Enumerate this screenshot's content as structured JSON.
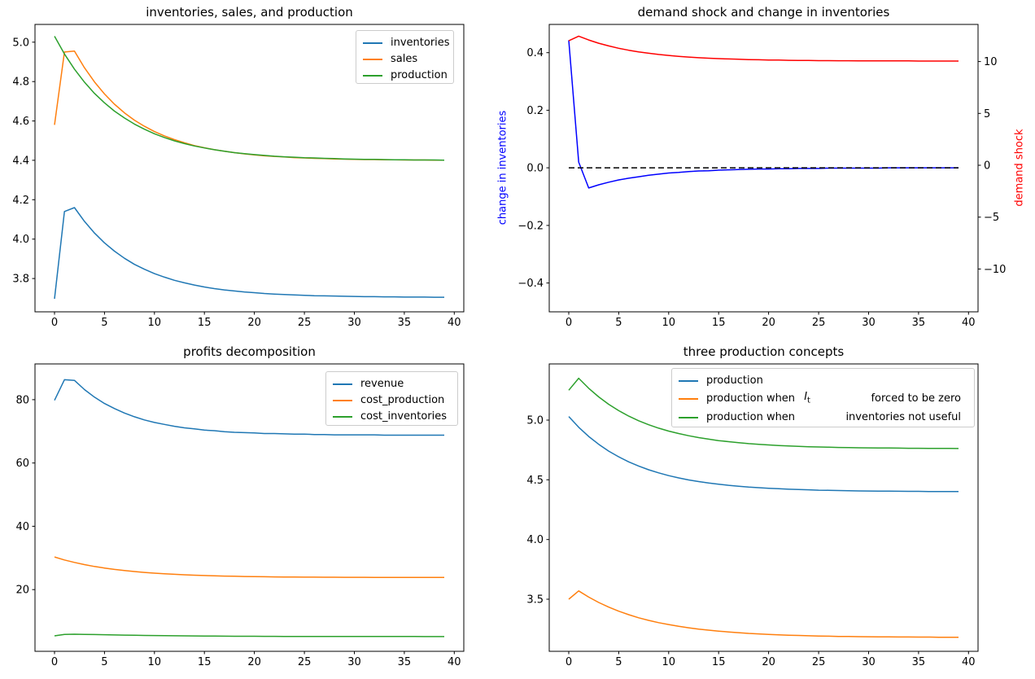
{
  "figure": {
    "background": "#ffffff",
    "axis_color": "#000000"
  },
  "chart_data": [
    {
      "type": "line",
      "title": "inventories, sales, and production",
      "xlabel": "",
      "ylabel": "",
      "grid": false,
      "legend_position": "upper right",
      "xlim": [
        -1.95,
        40.95
      ],
      "ylim": [
        3.631,
        5.09
      ],
      "xticks": {
        "values": [
          0,
          5,
          10,
          15,
          20,
          25,
          30,
          35,
          40
        ],
        "labels": [
          "0",
          "5",
          "10",
          "15",
          "20",
          "25",
          "30",
          "35",
          "40"
        ]
      },
      "yticks": {
        "values": [
          3.8,
          4.0,
          4.2,
          4.4,
          4.6,
          4.8,
          5.0
        ],
        "labels": [
          "3.8",
          "4.0",
          "4.2",
          "4.4",
          "4.6",
          "4.8",
          "5.0"
        ]
      },
      "x": [
        0,
        1,
        2,
        3,
        4,
        5,
        6,
        7,
        8,
        9,
        10,
        11,
        12,
        13,
        14,
        15,
        16,
        17,
        18,
        19,
        20,
        21,
        22,
        23,
        24,
        25,
        26,
        27,
        28,
        29,
        30,
        31,
        32,
        33,
        34,
        35,
        36,
        37,
        38,
        39
      ],
      "series": [
        {
          "name": "inventories",
          "label": "inventories",
          "color": "#1f77b4",
          "values": [
            3.697,
            4.14,
            4.16,
            4.09,
            4.031,
            3.981,
            3.939,
            3.903,
            3.872,
            3.847,
            3.825,
            3.807,
            3.791,
            3.778,
            3.767,
            3.757,
            3.749,
            3.742,
            3.737,
            3.732,
            3.728,
            3.724,
            3.721,
            3.719,
            3.717,
            3.715,
            3.713,
            3.712,
            3.711,
            3.71,
            3.709,
            3.708,
            3.708,
            3.707,
            3.707,
            3.706,
            3.706,
            3.706,
            3.705,
            3.705
          ]
        },
        {
          "name": "sales",
          "label": "sales",
          "color": "#ff7f0e",
          "values": [
            4.58,
            4.95,
            4.955,
            4.87,
            4.798,
            4.737,
            4.685,
            4.641,
            4.604,
            4.573,
            4.546,
            4.524,
            4.505,
            4.489,
            4.475,
            4.464,
            4.454,
            4.446,
            4.439,
            4.433,
            4.428,
            4.423,
            4.42,
            4.417,
            4.414,
            4.412,
            4.41,
            4.409,
            4.407,
            4.406,
            4.405,
            4.404,
            4.404,
            4.403,
            4.403,
            4.402,
            4.402,
            4.402,
            4.401,
            4.401
          ]
        },
        {
          "name": "production",
          "label": "production",
          "color": "#2ca02c",
          "values": [
            5.03,
            4.94,
            4.863,
            4.797,
            4.74,
            4.692,
            4.65,
            4.615,
            4.584,
            4.558,
            4.535,
            4.516,
            4.499,
            4.485,
            4.473,
            4.463,
            4.454,
            4.446,
            4.439,
            4.434,
            4.429,
            4.425,
            4.421,
            4.418,
            4.416,
            4.413,
            4.412,
            4.41,
            4.409,
            4.407,
            4.406,
            4.405,
            4.405,
            4.404,
            4.403,
            4.403,
            4.402,
            4.402,
            4.402,
            4.401
          ]
        }
      ]
    },
    {
      "type": "line",
      "title": "demand shock and change in inventories",
      "ylabel_left": "change in inventories",
      "ylabel_left_color": "#0000ff",
      "ylabel_right": "demand shock",
      "ylabel_right_color": "#ff0000",
      "grid": false,
      "xlim": [
        -1.95,
        40.95
      ],
      "ylim": [
        -0.5,
        0.498
      ],
      "ylim2": [
        -14.13,
        13.58
      ],
      "xticks": {
        "values": [
          0,
          5,
          10,
          15,
          20,
          25,
          30,
          35,
          40
        ],
        "labels": [
          "0",
          "5",
          "10",
          "15",
          "20",
          "25",
          "30",
          "35",
          "40"
        ]
      },
      "yticks": {
        "values": [
          -0.4,
          -0.2,
          0.0,
          0.2,
          0.4
        ],
        "labels": [
          "−0.4",
          "−0.2",
          "0.0",
          "0.2",
          "0.4"
        ]
      },
      "yticks2": {
        "values": [
          -10,
          -5,
          0,
          5,
          10
        ],
        "labels": [
          "−10",
          "−5",
          "0",
          "5",
          "10"
        ]
      },
      "x": [
        0,
        1,
        2,
        3,
        4,
        5,
        6,
        7,
        8,
        9,
        10,
        11,
        12,
        13,
        14,
        15,
        16,
        17,
        18,
        19,
        20,
        21,
        22,
        23,
        24,
        25,
        26,
        27,
        28,
        29,
        30,
        31,
        32,
        33,
        34,
        35,
        36,
        37,
        38,
        39
      ],
      "series": [
        {
          "name": "change-in-inventories",
          "label": "change in inventories",
          "color": "#0000ff",
          "values": [
            0.443,
            0.02,
            -0.07,
            -0.059,
            -0.05,
            -0.042,
            -0.036,
            -0.031,
            -0.026,
            -0.022,
            -0.018,
            -0.016,
            -0.013,
            -0.011,
            -0.01,
            -0.008,
            -0.007,
            -0.006,
            -0.005,
            -0.004,
            -0.004,
            -0.003,
            -0.003,
            -0.002,
            -0.002,
            -0.002,
            -0.001,
            -0.001,
            -0.001,
            -0.001,
            -0.001,
            -0.001,
            0.0,
            0.0,
            0.0,
            0.0,
            0.0,
            0.0,
            0.0,
            0.0
          ]
        },
        {
          "name": "demand-shock",
          "label": "demand shock",
          "color": "#ff0000",
          "axis": "right",
          "values": [
            12.0,
            12.45,
            12.08,
            11.77,
            11.51,
            11.28,
            11.09,
            10.93,
            10.8,
            10.68,
            10.59,
            10.5,
            10.43,
            10.37,
            10.32,
            10.28,
            10.25,
            10.22,
            10.19,
            10.17,
            10.15,
            10.14,
            10.12,
            10.11,
            10.1,
            10.09,
            10.09,
            10.08,
            10.08,
            10.07,
            10.07,
            10.06,
            10.06,
            10.06,
            10.06,
            10.05,
            10.05,
            10.05,
            10.05,
            10.05
          ]
        },
        {
          "name": "zero-line",
          "label": "zero line",
          "color": "#000000",
          "dash": true,
          "values": [
            0,
            0,
            0,
            0,
            0,
            0,
            0,
            0,
            0,
            0,
            0,
            0,
            0,
            0,
            0,
            0,
            0,
            0,
            0,
            0,
            0,
            0,
            0,
            0,
            0,
            0,
            0,
            0,
            0,
            0,
            0,
            0,
            0,
            0,
            0,
            0,
            0,
            0,
            0,
            0
          ]
        }
      ]
    },
    {
      "type": "line",
      "title": "profits decomposition",
      "grid": false,
      "legend_position": "upper right",
      "xlim": [
        -1.95,
        40.95
      ],
      "ylim": [
        0.5,
        91.3
      ],
      "xticks": {
        "values": [
          0,
          5,
          10,
          15,
          20,
          25,
          30,
          35,
          40
        ],
        "labels": [
          "0",
          "5",
          "10",
          "15",
          "20",
          "25",
          "30",
          "35",
          "40"
        ]
      },
      "yticks": {
        "values": [
          20,
          40,
          60,
          80
        ],
        "labels": [
          "20",
          "40",
          "60",
          "80"
        ]
      },
      "x": [
        0,
        1,
        2,
        3,
        4,
        5,
        6,
        7,
        8,
        9,
        10,
        11,
        12,
        13,
        14,
        15,
        16,
        17,
        18,
        19,
        20,
        21,
        22,
        23,
        24,
        25,
        26,
        27,
        28,
        29,
        30,
        31,
        32,
        33,
        34,
        35,
        36,
        37,
        38,
        39
      ],
      "series": [
        {
          "name": "revenue",
          "label": "revenue",
          "color": "#1f77b4",
          "values": [
            79.8,
            86.3,
            86.1,
            83.2,
            80.8,
            78.8,
            77.2,
            75.8,
            74.6,
            73.6,
            72.8,
            72.2,
            71.6,
            71.1,
            70.8,
            70.4,
            70.2,
            69.9,
            69.7,
            69.6,
            69.5,
            69.3,
            69.3,
            69.2,
            69.1,
            69.1,
            69.0,
            69.0,
            68.9,
            68.9,
            68.9,
            68.9,
            68.9,
            68.8,
            68.8,
            68.8,
            68.8,
            68.8,
            68.8,
            68.8
          ]
        },
        {
          "name": "cost-production",
          "label": "cost_production",
          "color": "#ff7f0e",
          "values": [
            30.3,
            29.37,
            28.58,
            27.9,
            27.31,
            26.81,
            26.38,
            26.01,
            25.7,
            25.43,
            25.2,
            25.0,
            24.83,
            24.68,
            24.55,
            24.45,
            24.35,
            24.28,
            24.21,
            24.15,
            24.1,
            24.06,
            24.02,
            23.99,
            23.97,
            23.94,
            23.93,
            23.91,
            23.9,
            23.88,
            23.87,
            23.87,
            23.86,
            23.86,
            23.85,
            23.85,
            23.85,
            23.84,
            23.84,
            23.84
          ]
        },
        {
          "name": "cost-inventories",
          "label": "cost_inventories",
          "color": "#2ca02c",
          "values": [
            5.4,
            5.85,
            5.9,
            5.85,
            5.8,
            5.74,
            5.68,
            5.62,
            5.57,
            5.52,
            5.48,
            5.44,
            5.41,
            5.38,
            5.35,
            5.33,
            5.31,
            5.29,
            5.27,
            5.26,
            5.25,
            5.24,
            5.23,
            5.22,
            5.21,
            5.21,
            5.2,
            5.2,
            5.19,
            5.19,
            5.18,
            5.18,
            5.18,
            5.17,
            5.17,
            5.17,
            5.17,
            5.16,
            5.16,
            5.16
          ]
        }
      ]
    },
    {
      "type": "line",
      "title": "three production concepts",
      "grid": false,
      "legend_position": "upper center",
      "xlim": [
        -1.95,
        40.95
      ],
      "ylim": [
        3.064,
        5.47
      ],
      "xticks": {
        "values": [
          0,
          5,
          10,
          15,
          20,
          25,
          30,
          35,
          40
        ],
        "labels": [
          "0",
          "5",
          "10",
          "15",
          "20",
          "25",
          "30",
          "35",
          "40"
        ]
      },
      "yticks": {
        "values": [
          3.5,
          4.0,
          4.5,
          5.0
        ],
        "labels": [
          "3.5",
          "4.0",
          "4.5",
          "5.0"
        ]
      },
      "x": [
        0,
        1,
        2,
        3,
        4,
        5,
        6,
        7,
        8,
        9,
        10,
        11,
        12,
        13,
        14,
        15,
        16,
        17,
        18,
        19,
        20,
        21,
        22,
        23,
        24,
        25,
        26,
        27,
        28,
        29,
        30,
        31,
        32,
        33,
        34,
        35,
        36,
        37,
        38,
        39
      ],
      "series": [
        {
          "name": "production",
          "label": "production",
          "color": "#1f77b4",
          "values": [
            5.03,
            4.94,
            4.863,
            4.797,
            4.74,
            4.692,
            4.65,
            4.615,
            4.584,
            4.558,
            4.535,
            4.516,
            4.499,
            4.485,
            4.473,
            4.463,
            4.454,
            4.446,
            4.439,
            4.434,
            4.429,
            4.425,
            4.421,
            4.418,
            4.416,
            4.413,
            4.412,
            4.41,
            4.409,
            4.407,
            4.406,
            4.405,
            4.405,
            4.404,
            4.403,
            4.403,
            4.402,
            4.402,
            4.402,
            4.401
          ]
        },
        {
          "name": "production-inventories-forced-zero",
          "label": "production when I_t forced to be zero",
          "legend_left": "production when ",
          "legend_math": "I",
          "legend_sub": "t",
          "legend_right": "forced to be zero",
          "color": "#ff7f0e",
          "values": [
            3.5,
            3.57,
            3.518,
            3.473,
            3.434,
            3.4,
            3.371,
            3.345,
            3.323,
            3.304,
            3.288,
            3.273,
            3.261,
            3.25,
            3.241,
            3.233,
            3.226,
            3.22,
            3.214,
            3.21,
            3.206,
            3.202,
            3.199,
            3.197,
            3.194,
            3.192,
            3.191,
            3.189,
            3.188,
            3.187,
            3.186,
            3.185,
            3.185,
            3.184,
            3.184,
            3.183,
            3.183,
            3.182,
            3.182,
            3.182
          ]
        },
        {
          "name": "production-inventories-not-useful",
          "label": "production when inventories not useful",
          "legend_left": "production when",
          "legend_right": "inventories not useful",
          "color": "#2ca02c",
          "values": [
            5.25,
            5.35,
            5.266,
            5.194,
            5.132,
            5.079,
            5.033,
            4.994,
            4.961,
            4.932,
            4.908,
            4.887,
            4.869,
            4.853,
            4.84,
            4.828,
            4.819,
            4.81,
            4.803,
            4.797,
            4.792,
            4.787,
            4.783,
            4.78,
            4.777,
            4.775,
            4.773,
            4.771,
            4.77,
            4.768,
            4.767,
            4.766,
            4.766,
            4.765,
            4.764,
            4.764,
            4.763,
            4.763,
            4.763,
            4.762
          ]
        }
      ]
    }
  ]
}
